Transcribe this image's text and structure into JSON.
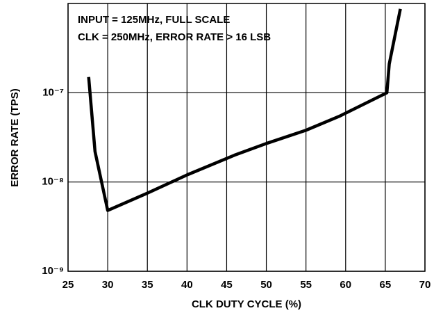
{
  "chart_data": {
    "type": "line",
    "annotations": [
      "INPUT = 125MHz, FULL SCALE",
      "CLK = 250MHz, ERROR RATE > 16 LSB"
    ],
    "x_label": "CLK DUTY CYCLE (%)",
    "y_label": "ERROR RATE (TPS)",
    "x": [
      27.6,
      28.4,
      30,
      35,
      40,
      46,
      50,
      55,
      59.3,
      65.2,
      65.5,
      66.9
    ],
    "series": [
      {
        "color": "#000000",
        "values": [
          1.5e-07,
          2.2e-08,
          4.8e-09,
          7.5e-09,
          1.2e-08,
          2e-08,
          2.7e-08,
          3.8e-08,
          5.5e-08,
          1e-07,
          2.1e-07,
          8.7e-07
        ]
      }
    ],
    "xlim": [
      25,
      70
    ],
    "xticks": [
      25,
      30,
      35,
      40,
      45,
      50,
      55,
      60,
      65,
      70
    ],
    "ylim": [
      1e-09,
      1e-06
    ],
    "yticks": [
      {
        "value": 1e-09,
        "label": "10⁻⁹"
      },
      {
        "value": 1e-08,
        "label": "10⁻⁸"
      },
      {
        "value": 1e-07,
        "label": "10⁻⁷"
      }
    ],
    "log_y": true,
    "grid": true
  }
}
